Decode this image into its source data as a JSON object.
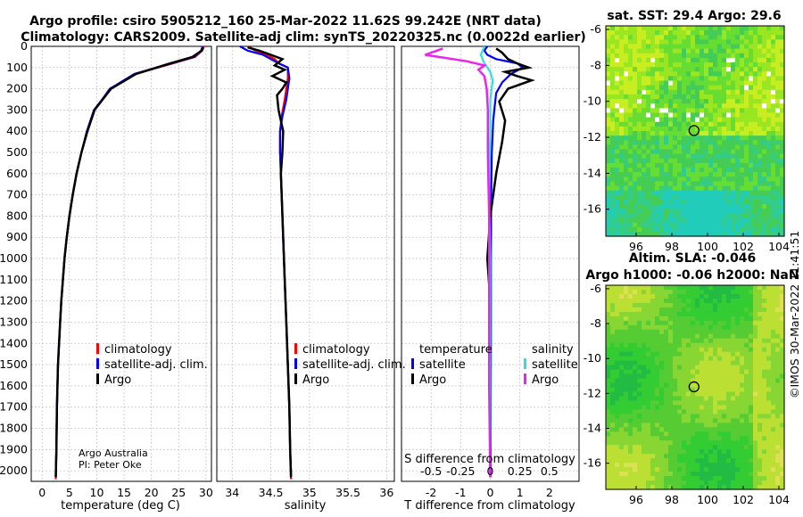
{
  "title_line1": "Argo profile: csiro 5905212_160 25-Mar-2022 11.62S 99.242E (NRT data)",
  "title_line2": "Climatology: CARS2009. Satellite-adj clim: synTS_20220325.nc (0.0022d earlier)",
  "credit_line1": "Argo Australia",
  "credit_line2": "PI: Peter Oke",
  "watermark": "©IMOS 30-Mar-2022 11:41:51",
  "colors": {
    "climatology": "#ff0000",
    "satellite": "#0000ff",
    "argo": "#000000",
    "sat_salinity": "#33dddd",
    "argo_salinity": "#ee22ee"
  },
  "chart_data": [
    {
      "type": "line",
      "name": "temperature",
      "xlabel": "temperature (deg C)",
      "ylabel": "",
      "xlim": [
        -2,
        31
      ],
      "ylim": [
        2050,
        0
      ],
      "xticks": [
        0,
        5,
        10,
        15,
        20,
        25,
        30
      ],
      "xticklabels": [
        "0",
        "5",
        "10",
        "15",
        "20",
        "25",
        "30"
      ],
      "yticks": [
        0,
        100,
        200,
        300,
        400,
        500,
        600,
        700,
        800,
        900,
        1000,
        1100,
        1200,
        1300,
        1400,
        1500,
        1600,
        1700,
        1800,
        1900,
        2000
      ],
      "legend": [
        "climatology",
        "satellite-adj. clim.",
        "Argo"
      ],
      "series": [
        {
          "name": "climatology",
          "x": [
            29.6,
            29.3,
            28.0,
            24.0,
            17.0,
            12.5,
            11.0,
            9.5,
            8.2,
            7.2,
            6.3,
            5.6,
            5.0,
            4.5,
            4.1,
            3.8,
            3.5,
            3.3,
            3.1,
            2.9,
            2.7,
            2.6,
            2.5
          ],
          "depth": [
            0,
            20,
            50,
            80,
            130,
            200,
            250,
            300,
            400,
            500,
            600,
            700,
            800,
            900,
            1000,
            1100,
            1200,
            1300,
            1400,
            1500,
            1700,
            1900,
            2040
          ]
        },
        {
          "name": "satellite-adj. clim.",
          "x": [
            29.4,
            29.1,
            27.8,
            23.8,
            16.9,
            12.4,
            11.0,
            9.5,
            8.2,
            7.2,
            6.3,
            5.6,
            5.0,
            4.5,
            4.1,
            3.8,
            3.5,
            3.3,
            3.1,
            2.9,
            2.7,
            2.6,
            2.5
          ],
          "depth": [
            0,
            20,
            50,
            80,
            130,
            200,
            250,
            300,
            400,
            500,
            600,
            700,
            800,
            900,
            1000,
            1100,
            1200,
            1300,
            1400,
            1500,
            1700,
            1900,
            2030
          ]
        },
        {
          "name": "Argo",
          "x": [
            29.5,
            29.2,
            27.5,
            23.5,
            17.2,
            12.6,
            11.1,
            9.6,
            8.3,
            7.2,
            6.3,
            5.6,
            5.0,
            4.5,
            4.1,
            3.8,
            3.5,
            3.3,
            3.1,
            2.9,
            2.7,
            2.6,
            2.5
          ],
          "depth": [
            5,
            20,
            50,
            80,
            130,
            200,
            250,
            300,
            400,
            500,
            600,
            700,
            800,
            900,
            1000,
            1100,
            1200,
            1300,
            1400,
            1500,
            1700,
            1900,
            2030
          ]
        }
      ]
    },
    {
      "type": "line",
      "name": "salinity",
      "xlabel": "salinity",
      "xlim": [
        33.8,
        36.1
      ],
      "ylim": [
        2050,
        0
      ],
      "xticks": [
        34,
        34.5,
        35,
        35.5,
        36
      ],
      "xticklabels": [
        "34",
        "34.5",
        "35",
        "35.5",
        "36"
      ],
      "legend": [
        "climatology",
        "satellite-adj. clim.",
        "Argo"
      ],
      "series": [
        {
          "name": "climatology",
          "x": [
            34.2,
            34.3,
            34.45,
            34.55,
            34.6,
            34.72,
            34.72,
            34.68,
            34.64,
            34.62,
            34.62,
            34.64,
            34.66,
            34.68,
            34.7,
            34.72,
            34.74,
            34.75,
            34.76,
            34.76
          ],
          "depth": [
            0,
            20,
            40,
            60,
            80,
            100,
            150,
            250,
            330,
            400,
            500,
            700,
            900,
            1100,
            1300,
            1500,
            1700,
            1900,
            2000,
            2040
          ]
        },
        {
          "name": "satellite-adj. clim.",
          "x": [
            34.1,
            34.2,
            34.4,
            34.5,
            34.6,
            34.72,
            34.74,
            34.7,
            34.65,
            34.62,
            34.62,
            34.64,
            34.66,
            34.68,
            34.7,
            34.72,
            34.74,
            34.75,
            34.76,
            34.76
          ],
          "depth": [
            0,
            20,
            40,
            60,
            80,
            100,
            150,
            250,
            330,
            400,
            500,
            700,
            900,
            1100,
            1300,
            1500,
            1700,
            1900,
            2000,
            2030
          ]
        },
        {
          "name": "Argo",
          "x": [
            34.2,
            34.35,
            34.5,
            34.65,
            34.55,
            34.68,
            34.52,
            34.7,
            34.65,
            34.58,
            34.6,
            34.66,
            34.65,
            34.63,
            34.64,
            34.66,
            34.68,
            34.7,
            34.72,
            34.74,
            34.75,
            34.76
          ],
          "depth": [
            5,
            20,
            40,
            60,
            90,
            110,
            140,
            170,
            200,
            230,
            300,
            400,
            500,
            600,
            700,
            900,
            1100,
            1300,
            1500,
            1700,
            1900,
            2030
          ]
        }
      ]
    },
    {
      "type": "line",
      "name": "differences",
      "xlabel": "T difference from climatology",
      "xlabel2": "S difference from climatology",
      "xlim": [
        -3,
        3
      ],
      "ylim": [
        2050,
        0
      ],
      "xticks": [
        -2,
        -1,
        0,
        1,
        2
      ],
      "xticklabels": [
        "-2",
        "-1",
        "0",
        "1",
        "2"
      ],
      "sticklabels": [
        "-0.5",
        "-0.25",
        "0",
        "0.25",
        "0.5"
      ],
      "legend_temperature_title": "temperature",
      "legend_salinity_title": "salinity",
      "legend": [
        "satellite",
        "Argo",
        "satellite",
        "Argo"
      ],
      "series": [
        {
          "name": "T satellite",
          "x": [
            -0.1,
            -0.2,
            -0.1,
            0.2,
            0.9,
            1.1,
            0.7,
            0.4,
            0.2,
            0.15,
            0.1,
            0.05,
            0.03,
            0.02,
            0.02,
            0.01,
            0.01
          ],
          "depth": [
            0,
            20,
            40,
            60,
            80,
            100,
            130,
            170,
            220,
            280,
            350,
            500,
            700,
            1000,
            1400,
            1800,
            2030
          ]
        },
        {
          "name": "T Argo",
          "x": [
            0.2,
            0.4,
            0.6,
            0.9,
            1.3,
            0.5,
            0.9,
            1.4,
            0.6,
            0.3,
            0.5,
            0.4,
            0.2,
            0.0,
            -0.1,
            0.0,
            0.0,
            0.0,
            0.0,
            0.0
          ],
          "depth": [
            10,
            30,
            60,
            80,
            100,
            120,
            140,
            160,
            200,
            260,
            350,
            450,
            600,
            800,
            1000,
            1200,
            1400,
            1600,
            1800,
            2030
          ]
        },
        {
          "name": "S satellite",
          "x": [
            -0.05,
            -0.08,
            -0.05,
            0,
            0.02,
            0.0,
            0.0,
            -0.01,
            0.0,
            0.0,
            0.0
          ],
          "depth": [
            0,
            40,
            80,
            120,
            160,
            250,
            400,
            700,
            1000,
            1500,
            2030
          ]
        },
        {
          "name": "S Argo",
          "x": [
            -0.4,
            -0.55,
            -0.2,
            -0.05,
            -0.1,
            -0.05,
            -0.03,
            -0.02,
            -0.02,
            -0.01,
            -0.01,
            -0.01,
            0.0
          ],
          "depth": [
            10,
            40,
            70,
            90,
            110,
            140,
            200,
            300,
            500,
            800,
            1200,
            1600,
            2030
          ]
        }
      ]
    },
    {
      "type": "heatmap",
      "name": "sst_map",
      "title": "sat. SST: 29.4 Argo: 29.6",
      "xlim": [
        94.3,
        104.3
      ],
      "ylim": [
        -17.5,
        -5.8
      ],
      "xticks": [
        96,
        98,
        100,
        102,
        104
      ],
      "xticklabels": [
        "96",
        "98",
        "100",
        "102",
        "104"
      ],
      "yticks": [
        -6,
        -8,
        -10,
        -12,
        -14,
        -16
      ],
      "yticklabels": [
        "-6",
        "-8",
        "-10",
        "-12",
        "-14",
        "-16"
      ],
      "marker": {
        "lon": 99.242,
        "lat": -11.62
      }
    },
    {
      "type": "heatmap",
      "name": "sla_map",
      "title": "Altim. SLA: -0.046",
      "subtitle": "Argo h1000: -0.06 h2000: NaN",
      "xlim": [
        94.3,
        104.3
      ],
      "ylim": [
        -17.5,
        -5.8
      ],
      "xticks": [
        96,
        98,
        100,
        102,
        104
      ],
      "xticklabels": [
        "96",
        "98",
        "100",
        "102",
        "104"
      ],
      "yticks": [
        -6,
        -8,
        -10,
        -12,
        -14,
        -16
      ],
      "yticklabels": [
        "-6",
        "-8",
        "-10",
        "-12",
        "-14",
        "-16"
      ],
      "marker": {
        "lon": 99.242,
        "lat": -11.62
      }
    }
  ]
}
